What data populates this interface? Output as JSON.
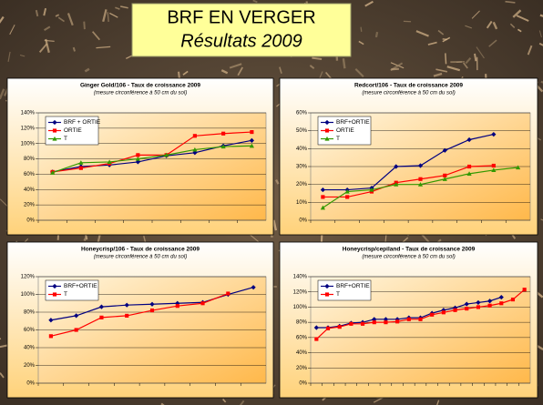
{
  "slide": {
    "title": "BRF EN VERGER",
    "subtitle": "Résultats 2009"
  },
  "chart_data": [
    {
      "type": "line",
      "title": "Ginger Gold/106 - Taux de croissance 2009",
      "subtitle": "(mesure circonférence à 50 cm du sol)",
      "categories": [
        null,
        null,
        null,
        null,
        null,
        null,
        null,
        null
      ],
      "ylim": [
        0,
        140
      ],
      "yticks": [
        {
          "value": 0,
          "label": "0%"
        },
        {
          "value": 20,
          "label": "20%"
        },
        {
          "value": 40,
          "label": "40%"
        },
        {
          "value": 60,
          "label": "60%"
        },
        {
          "value": 80,
          "label": "80%"
        },
        {
          "value": 100,
          "label": "100%"
        },
        {
          "value": 120,
          "label": "120%"
        },
        {
          "value": 140,
          "label": "140%"
        }
      ],
      "grid": true,
      "legend": "upper left",
      "series": [
        {
          "name": "BRF + ORTIE",
          "color": "#000080",
          "marker": "diamond",
          "values": [
            63,
            70,
            72,
            76,
            84,
            88,
            97,
            104
          ]
        },
        {
          "name": "ORTIE",
          "color": "#ff0000",
          "marker": "square",
          "values": [
            63,
            68,
            74,
            85,
            85,
            110,
            113,
            115
          ]
        },
        {
          "name": "T",
          "color": "#339900",
          "marker": "triangle",
          "values": [
            62,
            75,
            76,
            80,
            85,
            92,
            96,
            97
          ]
        }
      ]
    },
    {
      "type": "line",
      "title": "Redcort/106 - Taux de croissance 2009",
      "subtitle": "(mesure circonférence à 50 cm du sol)",
      "categories": [
        null,
        null,
        null,
        null,
        null,
        null,
        null,
        null,
        null
      ],
      "ylim": [
        0,
        60
      ],
      "yticks": [
        {
          "value": 0,
          "label": "0%"
        },
        {
          "value": 10,
          "label": "10%"
        },
        {
          "value": 20,
          "label": "20%"
        },
        {
          "value": 30,
          "label": "30%"
        },
        {
          "value": 40,
          "label": "40%"
        },
        {
          "value": 50,
          "label": "50%"
        },
        {
          "value": 60,
          "label": "60%"
        }
      ],
      "grid": true,
      "legend": "upper left",
      "series": [
        {
          "name": "BRF+ORTIE",
          "color": "#000080",
          "marker": "diamond",
          "values": [
            17,
            17,
            18,
            30,
            30.5,
            39,
            45,
            48,
            null
          ]
        },
        {
          "name": "ORTIE",
          "color": "#ff0000",
          "marker": "square",
          "values": [
            13,
            13,
            16,
            21,
            23,
            25,
            30,
            30.5,
            null
          ]
        },
        {
          "name": "T",
          "color": "#339900",
          "marker": "triangle",
          "values": [
            7,
            16,
            17,
            20,
            20,
            23,
            26,
            28,
            29.5
          ]
        }
      ]
    },
    {
      "type": "line",
      "title": "Honeycrisp/106 - Taux de croissance 2009",
      "subtitle": "(mesure circonférence à 50 cm du sol)",
      "categories": [
        null,
        null,
        null,
        null,
        null,
        null,
        null,
        null,
        null
      ],
      "ylim": [
        0,
        120
      ],
      "yticks": [
        {
          "value": 0,
          "label": "0%"
        },
        {
          "value": 20,
          "label": "20%"
        },
        {
          "value": 40,
          "label": "40%"
        },
        {
          "value": 60,
          "label": "60%"
        },
        {
          "value": 80,
          "label": "80%"
        },
        {
          "value": 100,
          "label": "100%"
        },
        {
          "value": 120,
          "label": "120%"
        }
      ],
      "grid": true,
      "legend": "upper left",
      "series": [
        {
          "name": "BRF+ORTIE",
          "color": "#000080",
          "marker": "diamond",
          "values": [
            71,
            76,
            86,
            88,
            89,
            90,
            91,
            100,
            108
          ]
        },
        {
          "name": "T",
          "color": "#ff0000",
          "marker": "square",
          "values": [
            53,
            60,
            74,
            76,
            82,
            87,
            90,
            101,
            null
          ]
        }
      ]
    },
    {
      "type": "line",
      "title": "Honeycrisp/cepiland - Taux de croissance 2009",
      "subtitle": "(mesure circonférence à 50 cm du sol)",
      "categories": [
        null,
        null,
        null,
        null,
        null,
        null,
        null,
        null,
        null,
        null,
        null,
        null,
        null,
        null,
        null,
        null,
        null,
        null,
        null
      ],
      "ylim": [
        0,
        140
      ],
      "yticks": [
        {
          "value": 0,
          "label": "0%"
        },
        {
          "value": 20,
          "label": "20%"
        },
        {
          "value": 40,
          "label": "40%"
        },
        {
          "value": 60,
          "label": "60%"
        },
        {
          "value": 80,
          "label": "80%"
        },
        {
          "value": 100,
          "label": "100%"
        },
        {
          "value": 120,
          "label": "120%"
        },
        {
          "value": 140,
          "label": "140%"
        }
      ],
      "grid": true,
      "legend": "upper left",
      "series": [
        {
          "name": "BRF+ORTIE",
          "color": "#000080",
          "marker": "diamond",
          "values": [
            73,
            73,
            75,
            79,
            80,
            84,
            84,
            84,
            86,
            86,
            92,
            96,
            99,
            104,
            106,
            108,
            113,
            null,
            null
          ]
        },
        {
          "name": "T",
          "color": "#ff0000",
          "marker": "square",
          "values": [
            58,
            72,
            74,
            78,
            78,
            80,
            80,
            81,
            84,
            84,
            90,
            93,
            96,
            98,
            100,
            102,
            105,
            110,
            123
          ]
        }
      ]
    }
  ]
}
